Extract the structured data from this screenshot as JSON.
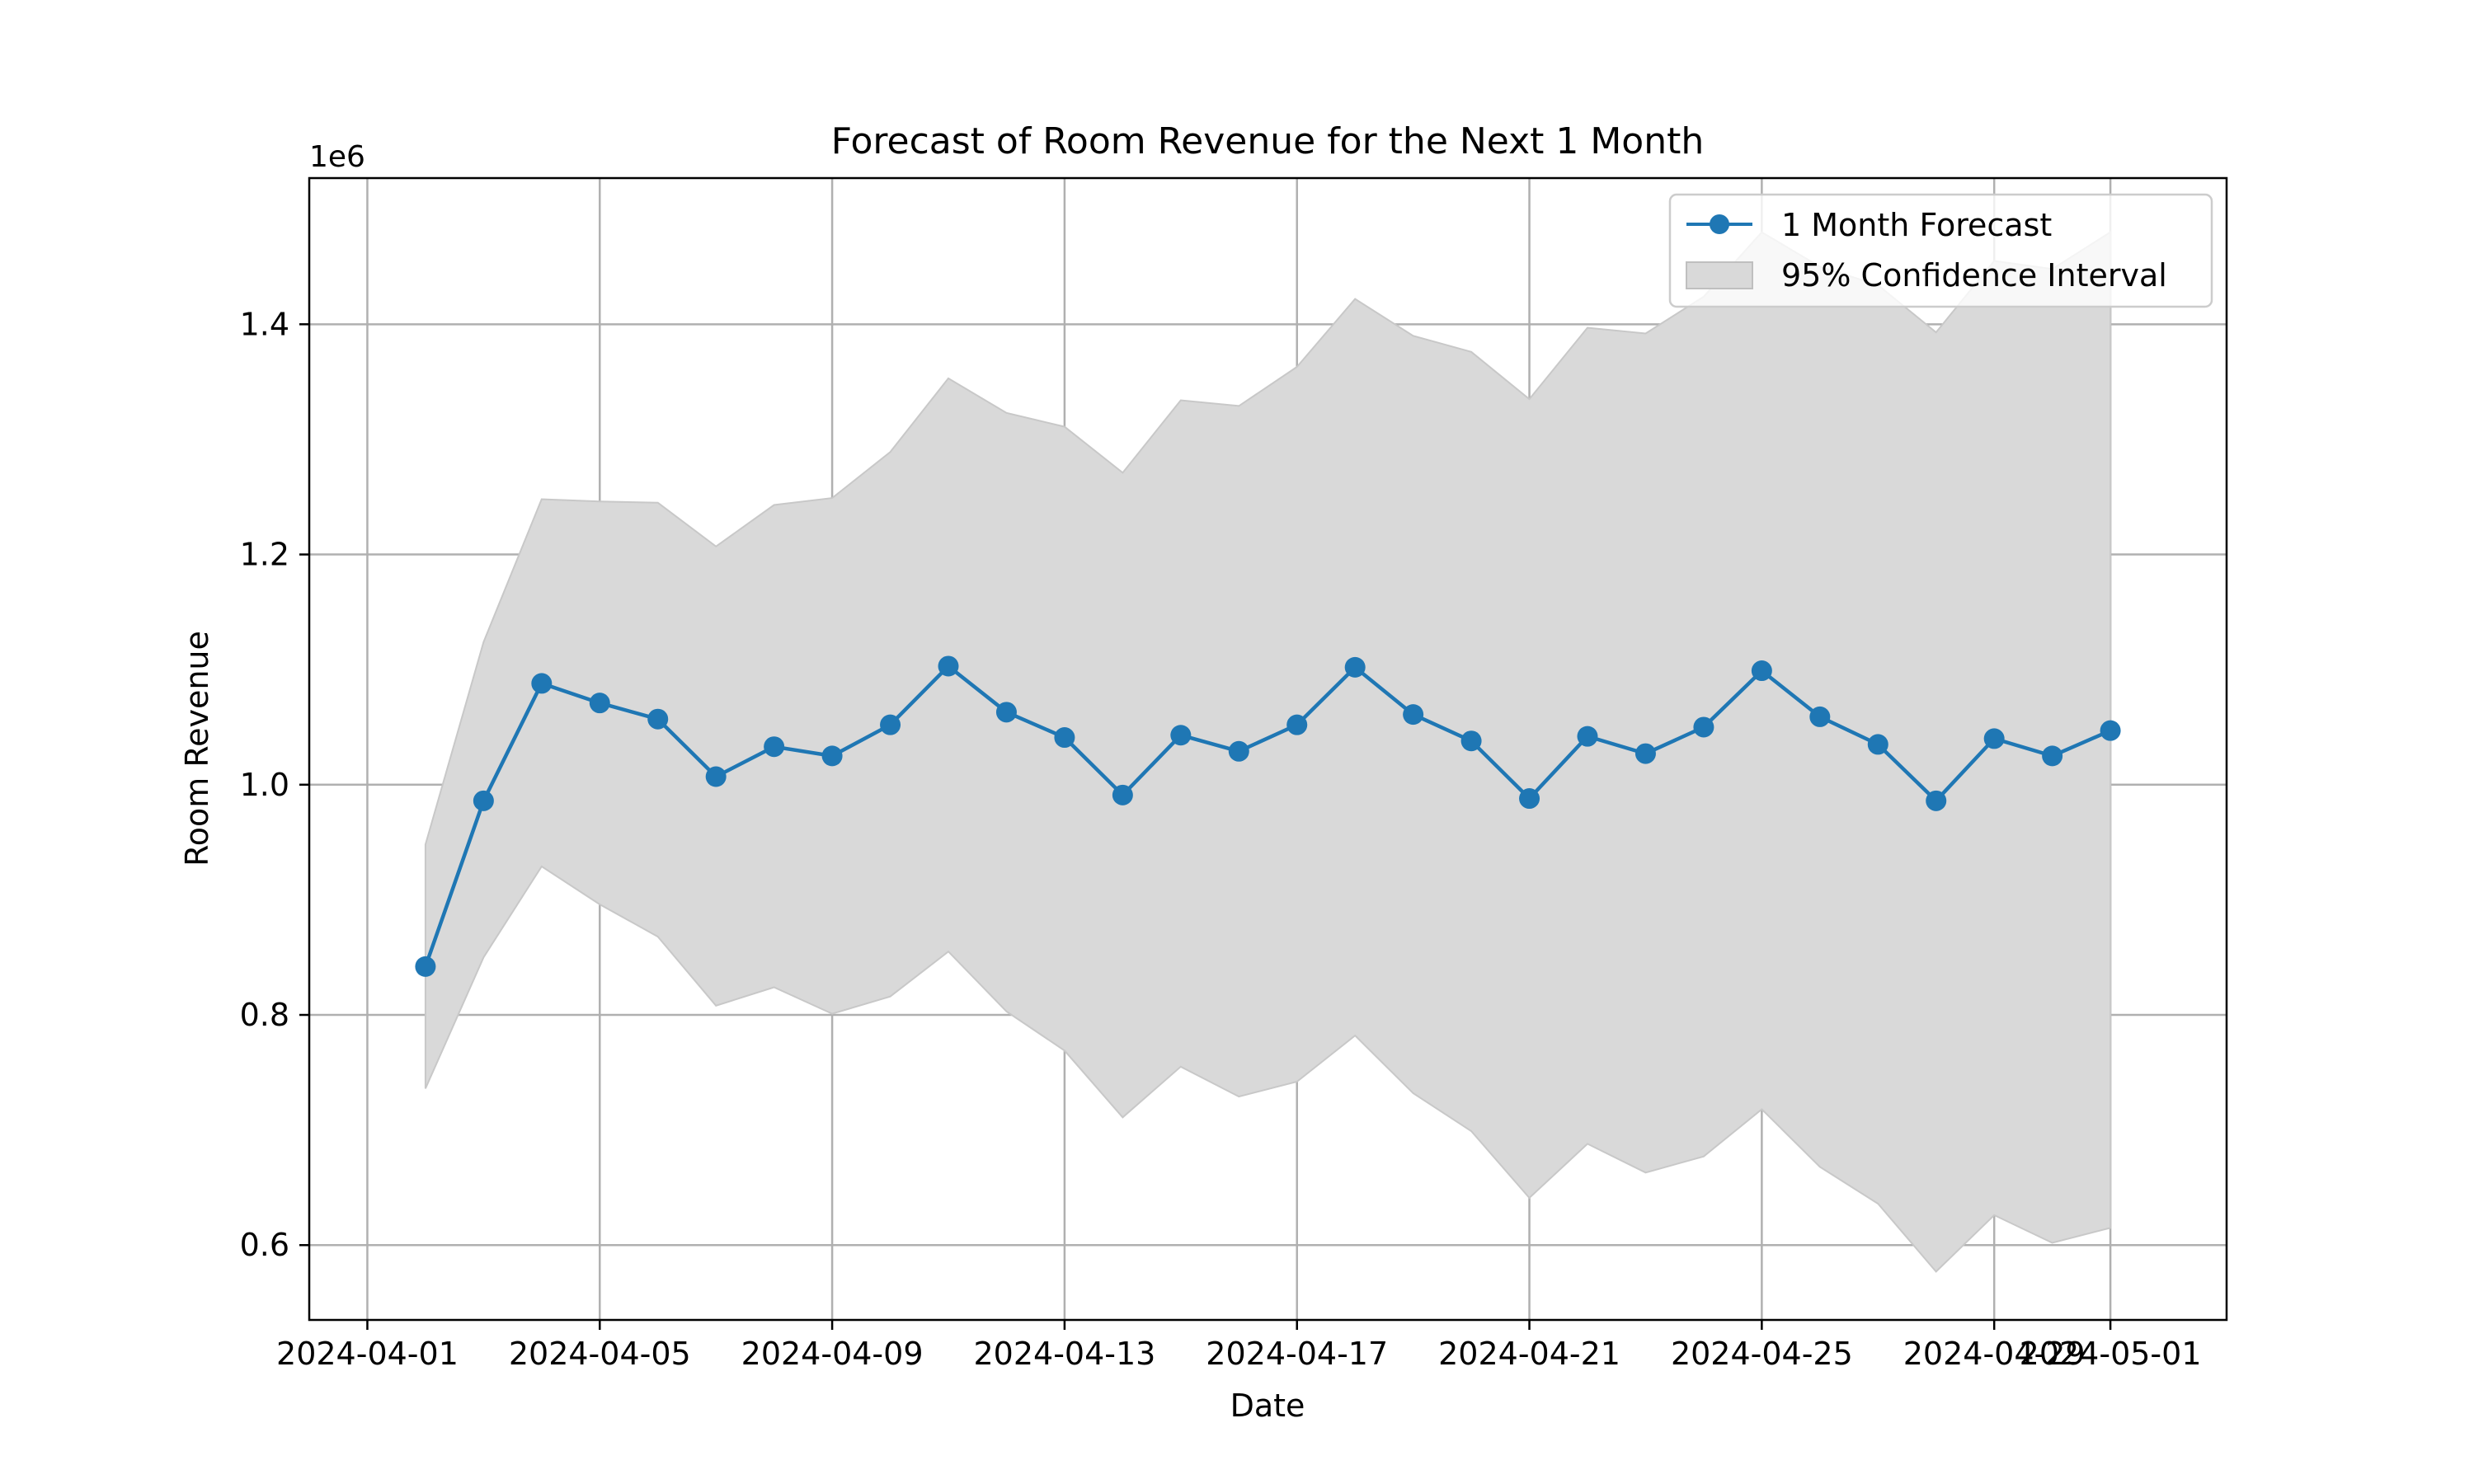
{
  "chart_data": {
    "type": "line",
    "title": "Forecast of Room Revenue for the Next 1 Month",
    "xlabel": "Date",
    "ylabel": "Room Revenue",
    "y_offset_label": "1e6",
    "grid": true,
    "legend_position": "top-right",
    "xlim": [
      "2024-03-31",
      "2024-05-03"
    ],
    "ylim": [
      0.535,
      1.527
    ],
    "y_multiplier": 1000000,
    "x_ticks": [
      {
        "date": "2024-04-01",
        "label": "2024-04-01"
      },
      {
        "date": "2024-04-05",
        "label": "2024-04-05"
      },
      {
        "date": "2024-04-09",
        "label": "2024-04-09"
      },
      {
        "date": "2024-04-13",
        "label": "2024-04-13"
      },
      {
        "date": "2024-04-17",
        "label": "2024-04-17"
      },
      {
        "date": "2024-04-21",
        "label": "2024-04-21"
      },
      {
        "date": "2024-04-25",
        "label": "2024-04-25"
      },
      {
        "date": "2024-04-29",
        "label": "2024-04-29"
      },
      {
        "date": "2024-05-01",
        "label": "2024-05-01"
      }
    ],
    "y_ticks": [
      {
        "value": 0.6,
        "label": "0.6"
      },
      {
        "value": 0.8,
        "label": "0.8"
      },
      {
        "value": 1.0,
        "label": "1.0"
      },
      {
        "value": 1.2,
        "label": "1.2"
      },
      {
        "value": 1.4,
        "label": "1.4"
      }
    ],
    "x": [
      "2024-04-02",
      "2024-04-03",
      "2024-04-04",
      "2024-04-05",
      "2024-04-06",
      "2024-04-07",
      "2024-04-08",
      "2024-04-09",
      "2024-04-10",
      "2024-04-11",
      "2024-04-12",
      "2024-04-13",
      "2024-04-14",
      "2024-04-15",
      "2024-04-16",
      "2024-04-17",
      "2024-04-18",
      "2024-04-19",
      "2024-04-20",
      "2024-04-21",
      "2024-04-22",
      "2024-04-23",
      "2024-04-24",
      "2024-04-25",
      "2024-04-26",
      "2024-04-27",
      "2024-04-28",
      "2024-04-29",
      "2024-04-30",
      "2024-05-01"
    ],
    "series": [
      {
        "name": "1 Month Forecast",
        "color": "#1f77b4",
        "values": [
          0.842,
          0.986,
          1.088,
          1.071,
          1.057,
          1.007,
          1.033,
          1.025,
          1.052,
          1.103,
          1.063,
          1.041,
          0.991,
          1.043,
          1.029,
          1.052,
          1.102,
          1.061,
          1.038,
          0.988,
          1.042,
          1.027,
          1.05,
          1.099,
          1.059,
          1.035,
          0.986,
          1.04,
          1.025,
          1.047
        ]
      }
    ],
    "confidence_interval": {
      "name": "95% Confidence Interval",
      "color": "#d9d9d9",
      "lower": [
        0.736,
        0.85,
        0.929,
        0.896,
        0.868,
        0.808,
        0.824,
        0.801,
        0.816,
        0.855,
        0.803,
        0.769,
        0.711,
        0.755,
        0.729,
        0.742,
        0.782,
        0.732,
        0.699,
        0.641,
        0.688,
        0.663,
        0.677,
        0.718,
        0.668,
        0.636,
        0.577,
        0.626,
        0.602,
        0.615
      ],
      "upper": [
        0.948,
        1.124,
        1.248,
        1.246,
        1.245,
        1.207,
        1.243,
        1.249,
        1.289,
        1.353,
        1.323,
        1.311,
        1.271,
        1.334,
        1.329,
        1.363,
        1.422,
        1.39,
        1.376,
        1.335,
        1.397,
        1.392,
        1.424,
        1.48,
        1.45,
        1.434,
        1.393,
        1.455,
        1.448,
        1.48
      ]
    }
  }
}
